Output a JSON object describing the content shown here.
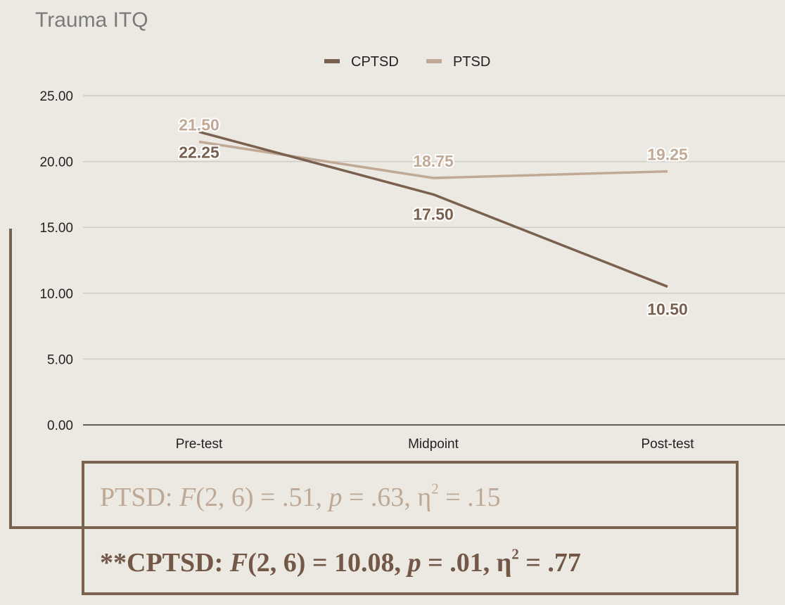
{
  "chart_data": {
    "type": "line",
    "title": "Trauma ITQ",
    "categories": [
      "Pre-test",
      "Midpoint",
      "Post-test"
    ],
    "series": [
      {
        "name": "CPTSD",
        "values": [
          22.25,
          17.5,
          10.5
        ],
        "color": "#7a604e",
        "labels": [
          "22.25",
          "17.50",
          "10.50"
        ]
      },
      {
        "name": "PTSD",
        "values": [
          21.5,
          18.75,
          19.25
        ],
        "color": "#c0a995",
        "labels": [
          "21.50",
          "18.75",
          "19.25"
        ]
      }
    ],
    "yticks": [
      "0.00",
      "5.00",
      "10.00",
      "15.00",
      "20.00",
      "25.00"
    ],
    "ylim": [
      0,
      25
    ],
    "grid": true,
    "legend_position": "top"
  },
  "stats": {
    "ptsd": {
      "prefix": "PTSD: ",
      "F": "F",
      "df": "(2, 6) = .51, ",
      "p": "p",
      "p_val": " = .63, ",
      "eta": "η",
      "eta_sup": "2",
      "eta_val": " = .15"
    },
    "cptsd": {
      "prefix": "**CPTSD: ",
      "F": "F",
      "df": "(2, 6) = 10.08, ",
      "p": "p",
      "p_val": " = .01, ",
      "eta": "η",
      "eta_sup": "2",
      "eta_val": " = .77"
    }
  },
  "colors": {
    "background": "#ece9e3",
    "cptsd": "#7a604e",
    "ptsd": "#c0a995",
    "box_border": "#7a6250"
  }
}
